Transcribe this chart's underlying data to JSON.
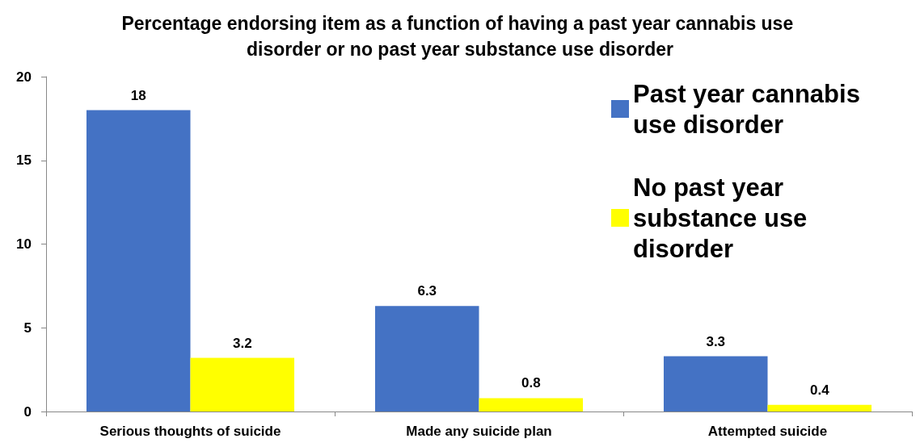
{
  "chart_data": {
    "type": "bar",
    "title": "Percentage endorsing item as a function of having a past year cannabis use disorder or no past year substance use disorder",
    "categories": [
      "Serious thoughts of suicide",
      "Made any suicide plan",
      "Attempted suicide"
    ],
    "series": [
      {
        "name": "Past year cannabis use disorder",
        "color": "#4472c4",
        "values": [
          18,
          6.3,
          3.3
        ]
      },
      {
        "name": "No past year substance use disorder",
        "color": "#ffff00",
        "values": [
          3.2,
          0.8,
          0.4
        ]
      }
    ],
    "ylim": [
      0,
      20
    ],
    "yticks": [
      0,
      5,
      10,
      15,
      20
    ],
    "grid": false,
    "legend": "top right",
    "data_labels": true
  }
}
